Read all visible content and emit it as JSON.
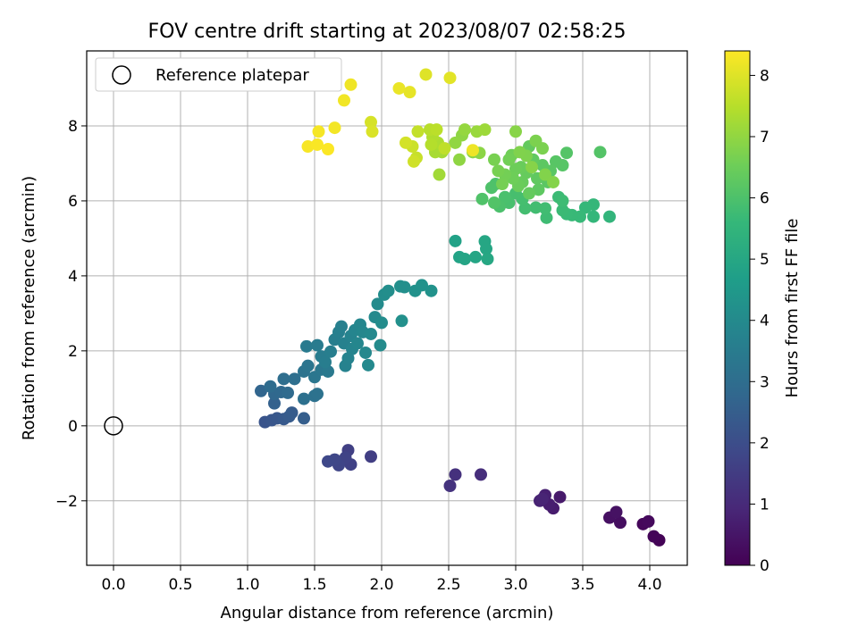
{
  "chart_data": {
    "type": "scatter",
    "title": "FOV centre drift starting at 2023/08/07 02:58:25",
    "xlabel": "Angular distance from reference (arcmin)",
    "ylabel": "Rotation from reference (arcmin)",
    "xlim": [
      -0.2,
      4.28
    ],
    "ylim": [
      -3.72,
      10.0
    ],
    "xticks": [
      "0.0",
      "0.5",
      "1.0",
      "1.5",
      "2.0",
      "2.5",
      "3.0",
      "3.5",
      "4.0"
    ],
    "yticks": [
      "−2",
      "0",
      "2",
      "4",
      "6",
      "8"
    ],
    "grid": true,
    "legend": {
      "position": "top-left",
      "entries": [
        "Reference platepar"
      ]
    },
    "reference_point": {
      "x": 0.0,
      "y": 0.0
    },
    "colorbar": {
      "label": "Hours from first FF file",
      "range": [
        0,
        8.4
      ],
      "ticks": [
        "0",
        "1",
        "2",
        "3",
        "4",
        "5",
        "6",
        "7",
        "8"
      ],
      "colormap": [
        "#440154",
        "#482878",
        "#3e4989",
        "#31688e",
        "#26828e",
        "#1f9e89",
        "#35b779",
        "#6ece58",
        "#b5de2b",
        "#fde725"
      ]
    },
    "marker_size": 7,
    "points": [
      {
        "x": 4.07,
        "y": -3.05,
        "c": 0.05
      },
      {
        "x": 4.03,
        "y": -2.95,
        "c": 0.1
      },
      {
        "x": 3.95,
        "y": -2.62,
        "c": 0.15
      },
      {
        "x": 3.99,
        "y": -2.55,
        "c": 0.2
      },
      {
        "x": 3.78,
        "y": -2.58,
        "c": 0.3
      },
      {
        "x": 3.7,
        "y": -2.45,
        "c": 0.35
      },
      {
        "x": 3.75,
        "y": -2.3,
        "c": 0.4
      },
      {
        "x": 3.33,
        "y": -1.9,
        "c": 0.6
      },
      {
        "x": 3.28,
        "y": -2.2,
        "c": 0.65
      },
      {
        "x": 3.25,
        "y": -2.1,
        "c": 0.7
      },
      {
        "x": 3.22,
        "y": -1.85,
        "c": 0.75
      },
      {
        "x": 3.18,
        "y": -2.0,
        "c": 0.8
      },
      {
        "x": 3.2,
        "y": -1.95,
        "c": 0.85
      },
      {
        "x": 2.74,
        "y": -1.3,
        "c": 1.1
      },
      {
        "x": 2.55,
        "y": -1.3,
        "c": 1.2
      },
      {
        "x": 2.51,
        "y": -1.6,
        "c": 1.25
      },
      {
        "x": 1.92,
        "y": -0.82,
        "c": 1.55
      },
      {
        "x": 1.75,
        "y": -0.65,
        "c": 1.6
      },
      {
        "x": 1.77,
        "y": -1.03,
        "c": 1.65
      },
      {
        "x": 1.73,
        "y": -0.85,
        "c": 1.7
      },
      {
        "x": 1.68,
        "y": -1.05,
        "c": 1.75
      },
      {
        "x": 1.65,
        "y": -0.9,
        "c": 1.8
      },
      {
        "x": 1.6,
        "y": -0.95,
        "c": 1.85
      },
      {
        "x": 1.13,
        "y": 0.1,
        "c": 2.2
      },
      {
        "x": 1.18,
        "y": 0.15,
        "c": 2.25
      },
      {
        "x": 1.22,
        "y": 0.2,
        "c": 2.3
      },
      {
        "x": 1.27,
        "y": 0.18,
        "c": 2.35
      },
      {
        "x": 1.31,
        "y": 0.25,
        "c": 2.4
      },
      {
        "x": 1.33,
        "y": 0.35,
        "c": 2.45
      },
      {
        "x": 1.42,
        "y": 0.2,
        "c": 2.5
      },
      {
        "x": 1.2,
        "y": 0.6,
        "c": 2.6
      },
      {
        "x": 1.1,
        "y": 0.93,
        "c": 2.75
      },
      {
        "x": 1.2,
        "y": 0.85,
        "c": 2.8
      },
      {
        "x": 1.25,
        "y": 0.9,
        "c": 2.85
      },
      {
        "x": 1.3,
        "y": 0.88,
        "c": 2.9
      },
      {
        "x": 1.17,
        "y": 1.05,
        "c": 2.95
      },
      {
        "x": 1.27,
        "y": 1.25,
        "c": 3.0
      },
      {
        "x": 1.35,
        "y": 1.25,
        "c": 3.05
      },
      {
        "x": 1.42,
        "y": 0.72,
        "c": 3.1
      },
      {
        "x": 1.5,
        "y": 0.8,
        "c": 3.12
      },
      {
        "x": 1.52,
        "y": 0.85,
        "c": 3.15
      },
      {
        "x": 1.42,
        "y": 1.45,
        "c": 3.2
      },
      {
        "x": 1.45,
        "y": 1.6,
        "c": 3.25
      },
      {
        "x": 1.5,
        "y": 1.3,
        "c": 3.3
      },
      {
        "x": 1.55,
        "y": 1.5,
        "c": 3.35
      },
      {
        "x": 1.6,
        "y": 1.45,
        "c": 3.4
      },
      {
        "x": 1.44,
        "y": 2.12,
        "c": 3.45
      },
      {
        "x": 1.52,
        "y": 2.15,
        "c": 3.5
      },
      {
        "x": 1.55,
        "y": 1.85,
        "c": 3.52
      },
      {
        "x": 1.58,
        "y": 1.7,
        "c": 3.55
      },
      {
        "x": 1.62,
        "y": 1.98,
        "c": 3.58
      },
      {
        "x": 1.65,
        "y": 2.3,
        "c": 3.6
      },
      {
        "x": 1.68,
        "y": 2.5,
        "c": 3.63
      },
      {
        "x": 1.7,
        "y": 2.65,
        "c": 3.66
      },
      {
        "x": 1.72,
        "y": 2.2,
        "c": 3.7
      },
      {
        "x": 1.73,
        "y": 1.6,
        "c": 3.72
      },
      {
        "x": 1.75,
        "y": 1.8,
        "c": 3.75
      },
      {
        "x": 1.77,
        "y": 2.4,
        "c": 3.78
      },
      {
        "x": 1.78,
        "y": 2.05,
        "c": 3.8
      },
      {
        "x": 1.8,
        "y": 2.55,
        "c": 3.82
      },
      {
        "x": 1.82,
        "y": 2.2,
        "c": 3.85
      },
      {
        "x": 1.84,
        "y": 2.7,
        "c": 3.87
      },
      {
        "x": 1.86,
        "y": 2.5,
        "c": 3.9
      },
      {
        "x": 1.88,
        "y": 1.95,
        "c": 3.92
      },
      {
        "x": 1.9,
        "y": 1.62,
        "c": 3.95
      },
      {
        "x": 1.92,
        "y": 2.45,
        "c": 3.97
      },
      {
        "x": 1.95,
        "y": 2.9,
        "c": 4.0
      },
      {
        "x": 1.97,
        "y": 3.25,
        "c": 4.02
      },
      {
        "x": 1.99,
        "y": 2.15,
        "c": 4.05
      },
      {
        "x": 2.0,
        "y": 2.75,
        "c": 4.07
      },
      {
        "x": 2.02,
        "y": 3.5,
        "c": 4.1
      },
      {
        "x": 2.05,
        "y": 3.6,
        "c": 4.12
      },
      {
        "x": 2.14,
        "y": 3.72,
        "c": 4.15
      },
      {
        "x": 2.17,
        "y": 3.7,
        "c": 4.17
      },
      {
        "x": 2.15,
        "y": 2.8,
        "c": 4.2
      },
      {
        "x": 2.25,
        "y": 3.6,
        "c": 4.22
      },
      {
        "x": 2.3,
        "y": 3.75,
        "c": 4.25
      },
      {
        "x": 2.37,
        "y": 3.6,
        "c": 4.27
      },
      {
        "x": 2.55,
        "y": 4.93,
        "c": 4.8
      },
      {
        "x": 2.58,
        "y": 4.5,
        "c": 4.85
      },
      {
        "x": 2.62,
        "y": 4.45,
        "c": 4.9
      },
      {
        "x": 2.7,
        "y": 4.5,
        "c": 4.92
      },
      {
        "x": 2.77,
        "y": 4.92,
        "c": 4.95
      },
      {
        "x": 2.78,
        "y": 4.72,
        "c": 4.97
      },
      {
        "x": 2.79,
        "y": 4.45,
        "c": 5.0
      },
      {
        "x": 3.7,
        "y": 5.58,
        "c": 5.5
      },
      {
        "x": 3.58,
        "y": 5.58,
        "c": 5.55
      },
      {
        "x": 3.58,
        "y": 5.9,
        "c": 5.58
      },
      {
        "x": 3.52,
        "y": 5.82,
        "c": 5.6
      },
      {
        "x": 3.48,
        "y": 5.58,
        "c": 5.63
      },
      {
        "x": 3.42,
        "y": 5.62,
        "c": 5.65
      },
      {
        "x": 3.38,
        "y": 5.65,
        "c": 5.67
      },
      {
        "x": 3.35,
        "y": 5.75,
        "c": 5.7
      },
      {
        "x": 3.32,
        "y": 6.1,
        "c": 5.72
      },
      {
        "x": 3.35,
        "y": 6.0,
        "c": 5.75
      },
      {
        "x": 3.23,
        "y": 5.55,
        "c": 5.77
      },
      {
        "x": 3.22,
        "y": 5.8,
        "c": 5.8
      },
      {
        "x": 3.15,
        "y": 5.82,
        "c": 5.82
      },
      {
        "x": 3.07,
        "y": 5.8,
        "c": 5.85
      },
      {
        "x": 3.05,
        "y": 6.05,
        "c": 5.87
      },
      {
        "x": 3.0,
        "y": 6.2,
        "c": 5.9
      },
      {
        "x": 2.95,
        "y": 5.95,
        "c": 5.92
      },
      {
        "x": 2.92,
        "y": 6.1,
        "c": 5.95
      },
      {
        "x": 2.88,
        "y": 5.85,
        "c": 5.97
      },
      {
        "x": 2.85,
        "y": 6.45,
        "c": 6.0
      },
      {
        "x": 2.82,
        "y": 6.35,
        "c": 6.02
      },
      {
        "x": 2.75,
        "y": 6.05,
        "c": 6.05
      },
      {
        "x": 2.84,
        "y": 5.95,
        "c": 6.07
      },
      {
        "x": 3.63,
        "y": 7.3,
        "c": 6.1
      },
      {
        "x": 3.38,
        "y": 7.28,
        "c": 6.12
      },
      {
        "x": 3.35,
        "y": 6.95,
        "c": 6.15
      },
      {
        "x": 3.3,
        "y": 7.05,
        "c": 6.17
      },
      {
        "x": 3.26,
        "y": 6.8,
        "c": 6.2
      },
      {
        "x": 3.24,
        "y": 6.5,
        "c": 6.22
      },
      {
        "x": 3.2,
        "y": 6.95,
        "c": 6.25
      },
      {
        "x": 3.17,
        "y": 6.3,
        "c": 6.27
      },
      {
        "x": 3.16,
        "y": 6.6,
        "c": 6.3
      },
      {
        "x": 3.13,
        "y": 7.1,
        "c": 6.32
      },
      {
        "x": 3.1,
        "y": 7.45,
        "c": 6.35
      },
      {
        "x": 3.1,
        "y": 6.2,
        "c": 6.37
      },
      {
        "x": 3.08,
        "y": 6.75,
        "c": 6.4
      },
      {
        "x": 3.05,
        "y": 6.5,
        "c": 6.42
      },
      {
        "x": 3.04,
        "y": 6.9,
        "c": 6.45
      },
      {
        "x": 3.02,
        "y": 6.4,
        "c": 6.47
      },
      {
        "x": 3.0,
        "y": 6.85,
        "c": 6.5
      },
      {
        "x": 2.98,
        "y": 6.6,
        "c": 6.52
      },
      {
        "x": 2.97,
        "y": 7.22,
        "c": 6.55
      },
      {
        "x": 2.95,
        "y": 7.1,
        "c": 6.57
      },
      {
        "x": 2.92,
        "y": 6.7,
        "c": 6.6
      },
      {
        "x": 2.9,
        "y": 6.45,
        "c": 6.62
      },
      {
        "x": 2.87,
        "y": 6.8,
        "c": 6.65
      },
      {
        "x": 2.84,
        "y": 7.1,
        "c": 6.67
      },
      {
        "x": 3.2,
        "y": 7.4,
        "c": 6.7
      },
      {
        "x": 3.15,
        "y": 7.6,
        "c": 6.72
      },
      {
        "x": 3.08,
        "y": 7.2,
        "c": 6.75
      },
      {
        "x": 3.03,
        "y": 7.3,
        "c": 6.77
      },
      {
        "x": 3.22,
        "y": 6.7,
        "c": 6.8
      },
      {
        "x": 3.28,
        "y": 6.5,
        "c": 6.82
      },
      {
        "x": 3.12,
        "y": 6.9,
        "c": 6.85
      },
      {
        "x": 3.0,
        "y": 7.85,
        "c": 6.87
      },
      {
        "x": 2.68,
        "y": 7.3,
        "c": 6.9
      },
      {
        "x": 2.73,
        "y": 7.28,
        "c": 6.92
      },
      {
        "x": 2.6,
        "y": 7.75,
        "c": 6.95
      },
      {
        "x": 2.58,
        "y": 7.1,
        "c": 6.97
      },
      {
        "x": 2.55,
        "y": 7.55,
        "c": 7.0
      },
      {
        "x": 2.62,
        "y": 7.9,
        "c": 7.05
      },
      {
        "x": 2.71,
        "y": 7.85,
        "c": 7.1
      },
      {
        "x": 2.77,
        "y": 7.9,
        "c": 7.15
      },
      {
        "x": 2.43,
        "y": 6.7,
        "c": 7.2
      },
      {
        "x": 2.45,
        "y": 7.3,
        "c": 7.25
      },
      {
        "x": 2.4,
        "y": 7.3,
        "c": 7.3
      },
      {
        "x": 2.42,
        "y": 7.55,
        "c": 7.35
      },
      {
        "x": 2.38,
        "y": 7.7,
        "c": 7.4
      },
      {
        "x": 2.37,
        "y": 7.5,
        "c": 7.45
      },
      {
        "x": 2.36,
        "y": 7.9,
        "c": 7.5
      },
      {
        "x": 2.41,
        "y": 7.9,
        "c": 7.55
      },
      {
        "x": 2.47,
        "y": 7.4,
        "c": 7.6
      },
      {
        "x": 2.27,
        "y": 7.85,
        "c": 7.65
      },
      {
        "x": 2.26,
        "y": 7.15,
        "c": 7.7
      },
      {
        "x": 2.23,
        "y": 7.45,
        "c": 7.75
      },
      {
        "x": 2.24,
        "y": 7.05,
        "c": 7.8
      },
      {
        "x": 2.18,
        "y": 7.55,
        "c": 7.85
      },
      {
        "x": 1.92,
        "y": 8.1,
        "c": 7.9
      },
      {
        "x": 1.93,
        "y": 7.85,
        "c": 7.95
      },
      {
        "x": 2.33,
        "y": 9.37,
        "c": 8.0
      },
      {
        "x": 2.51,
        "y": 9.28,
        "c": 8.05
      },
      {
        "x": 2.21,
        "y": 8.9,
        "c": 8.1
      },
      {
        "x": 2.13,
        "y": 9.0,
        "c": 8.15
      },
      {
        "x": 2.68,
        "y": 7.35,
        "c": 8.2
      },
      {
        "x": 1.77,
        "y": 9.1,
        "c": 8.22
      },
      {
        "x": 1.72,
        "y": 8.68,
        "c": 8.25
      },
      {
        "x": 1.65,
        "y": 7.95,
        "c": 8.27
      },
      {
        "x": 1.53,
        "y": 7.85,
        "c": 8.3
      },
      {
        "x": 1.45,
        "y": 7.45,
        "c": 8.32
      },
      {
        "x": 1.52,
        "y": 7.5,
        "c": 8.35
      },
      {
        "x": 1.6,
        "y": 7.38,
        "c": 8.38
      }
    ]
  }
}
